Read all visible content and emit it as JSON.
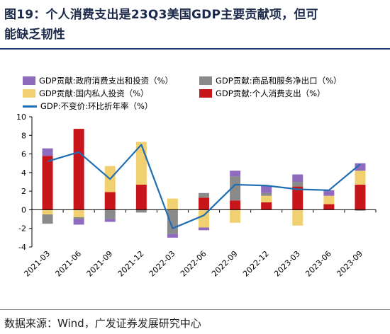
{
  "title": {
    "line1": "图19：个人消费支出是23Q3美国GDP主要贡献项，但可",
    "line2": "能缺乏韧性"
  },
  "source": "数据来源：Wind，广发证券发展研究中心",
  "colors": {
    "government": "#8e6bbd",
    "net_exports": "#8a8a8a",
    "investment": "#f0d070",
    "consumption": "#c8141b",
    "gdp_line": "#1f6db3"
  },
  "chart_data": {
    "type": "bar",
    "stacked": true,
    "categories": [
      "2021-03",
      "2021-06",
      "2021-09",
      "2021-12",
      "2022-03",
      "2022-06",
      "2022-09",
      "2022-12",
      "2023-03",
      "2023-06",
      "2023-09"
    ],
    "ylim": [
      -4,
      10
    ],
    "yticks": [
      -4,
      -2,
      0,
      2,
      4,
      6,
      8,
      10
    ],
    "grid": false,
    "legend_position": "top",
    "series": [
      {
        "name": "GDP贡献:政府消费支出和投资（%）",
        "key": "government",
        "type": "bar",
        "values": [
          0.8,
          -0.6,
          -0.3,
          0.0,
          -0.4,
          -0.3,
          0.6,
          0.8,
          0.8,
          0.6,
          0.8
        ]
      },
      {
        "name": "GDP贡献:商品和服务净出口（%）",
        "key": "net_exports",
        "type": "bar",
        "values": [
          -1.0,
          -0.2,
          -1.0,
          -0.3,
          -2.6,
          0.5,
          2.6,
          0.3,
          0.5,
          0.0,
          -0.1
        ]
      },
      {
        "name": "GDP贡献:国内私人投资（%）",
        "key": "investment",
        "type": "bar",
        "values": [
          -0.5,
          -0.8,
          2.8,
          4.6,
          1.2,
          -1.9,
          -1.4,
          0.7,
          -1.7,
          0.9,
          1.5
        ]
      },
      {
        "name": "GDP贡献:个人消费支出（%）",
        "key": "consumption",
        "type": "bar",
        "values": [
          5.8,
          8.7,
          1.9,
          2.7,
          0.0,
          1.3,
          1.0,
          0.8,
          2.5,
          0.6,
          2.7
        ]
      },
      {
        "name": "GDP:不变价:环比折年率（%）",
        "key": "gdp_line",
        "type": "line",
        "values": [
          5.2,
          6.2,
          3.3,
          7.0,
          -2.0,
          -0.6,
          2.7,
          2.6,
          2.2,
          2.1,
          4.9
        ]
      }
    ]
  }
}
